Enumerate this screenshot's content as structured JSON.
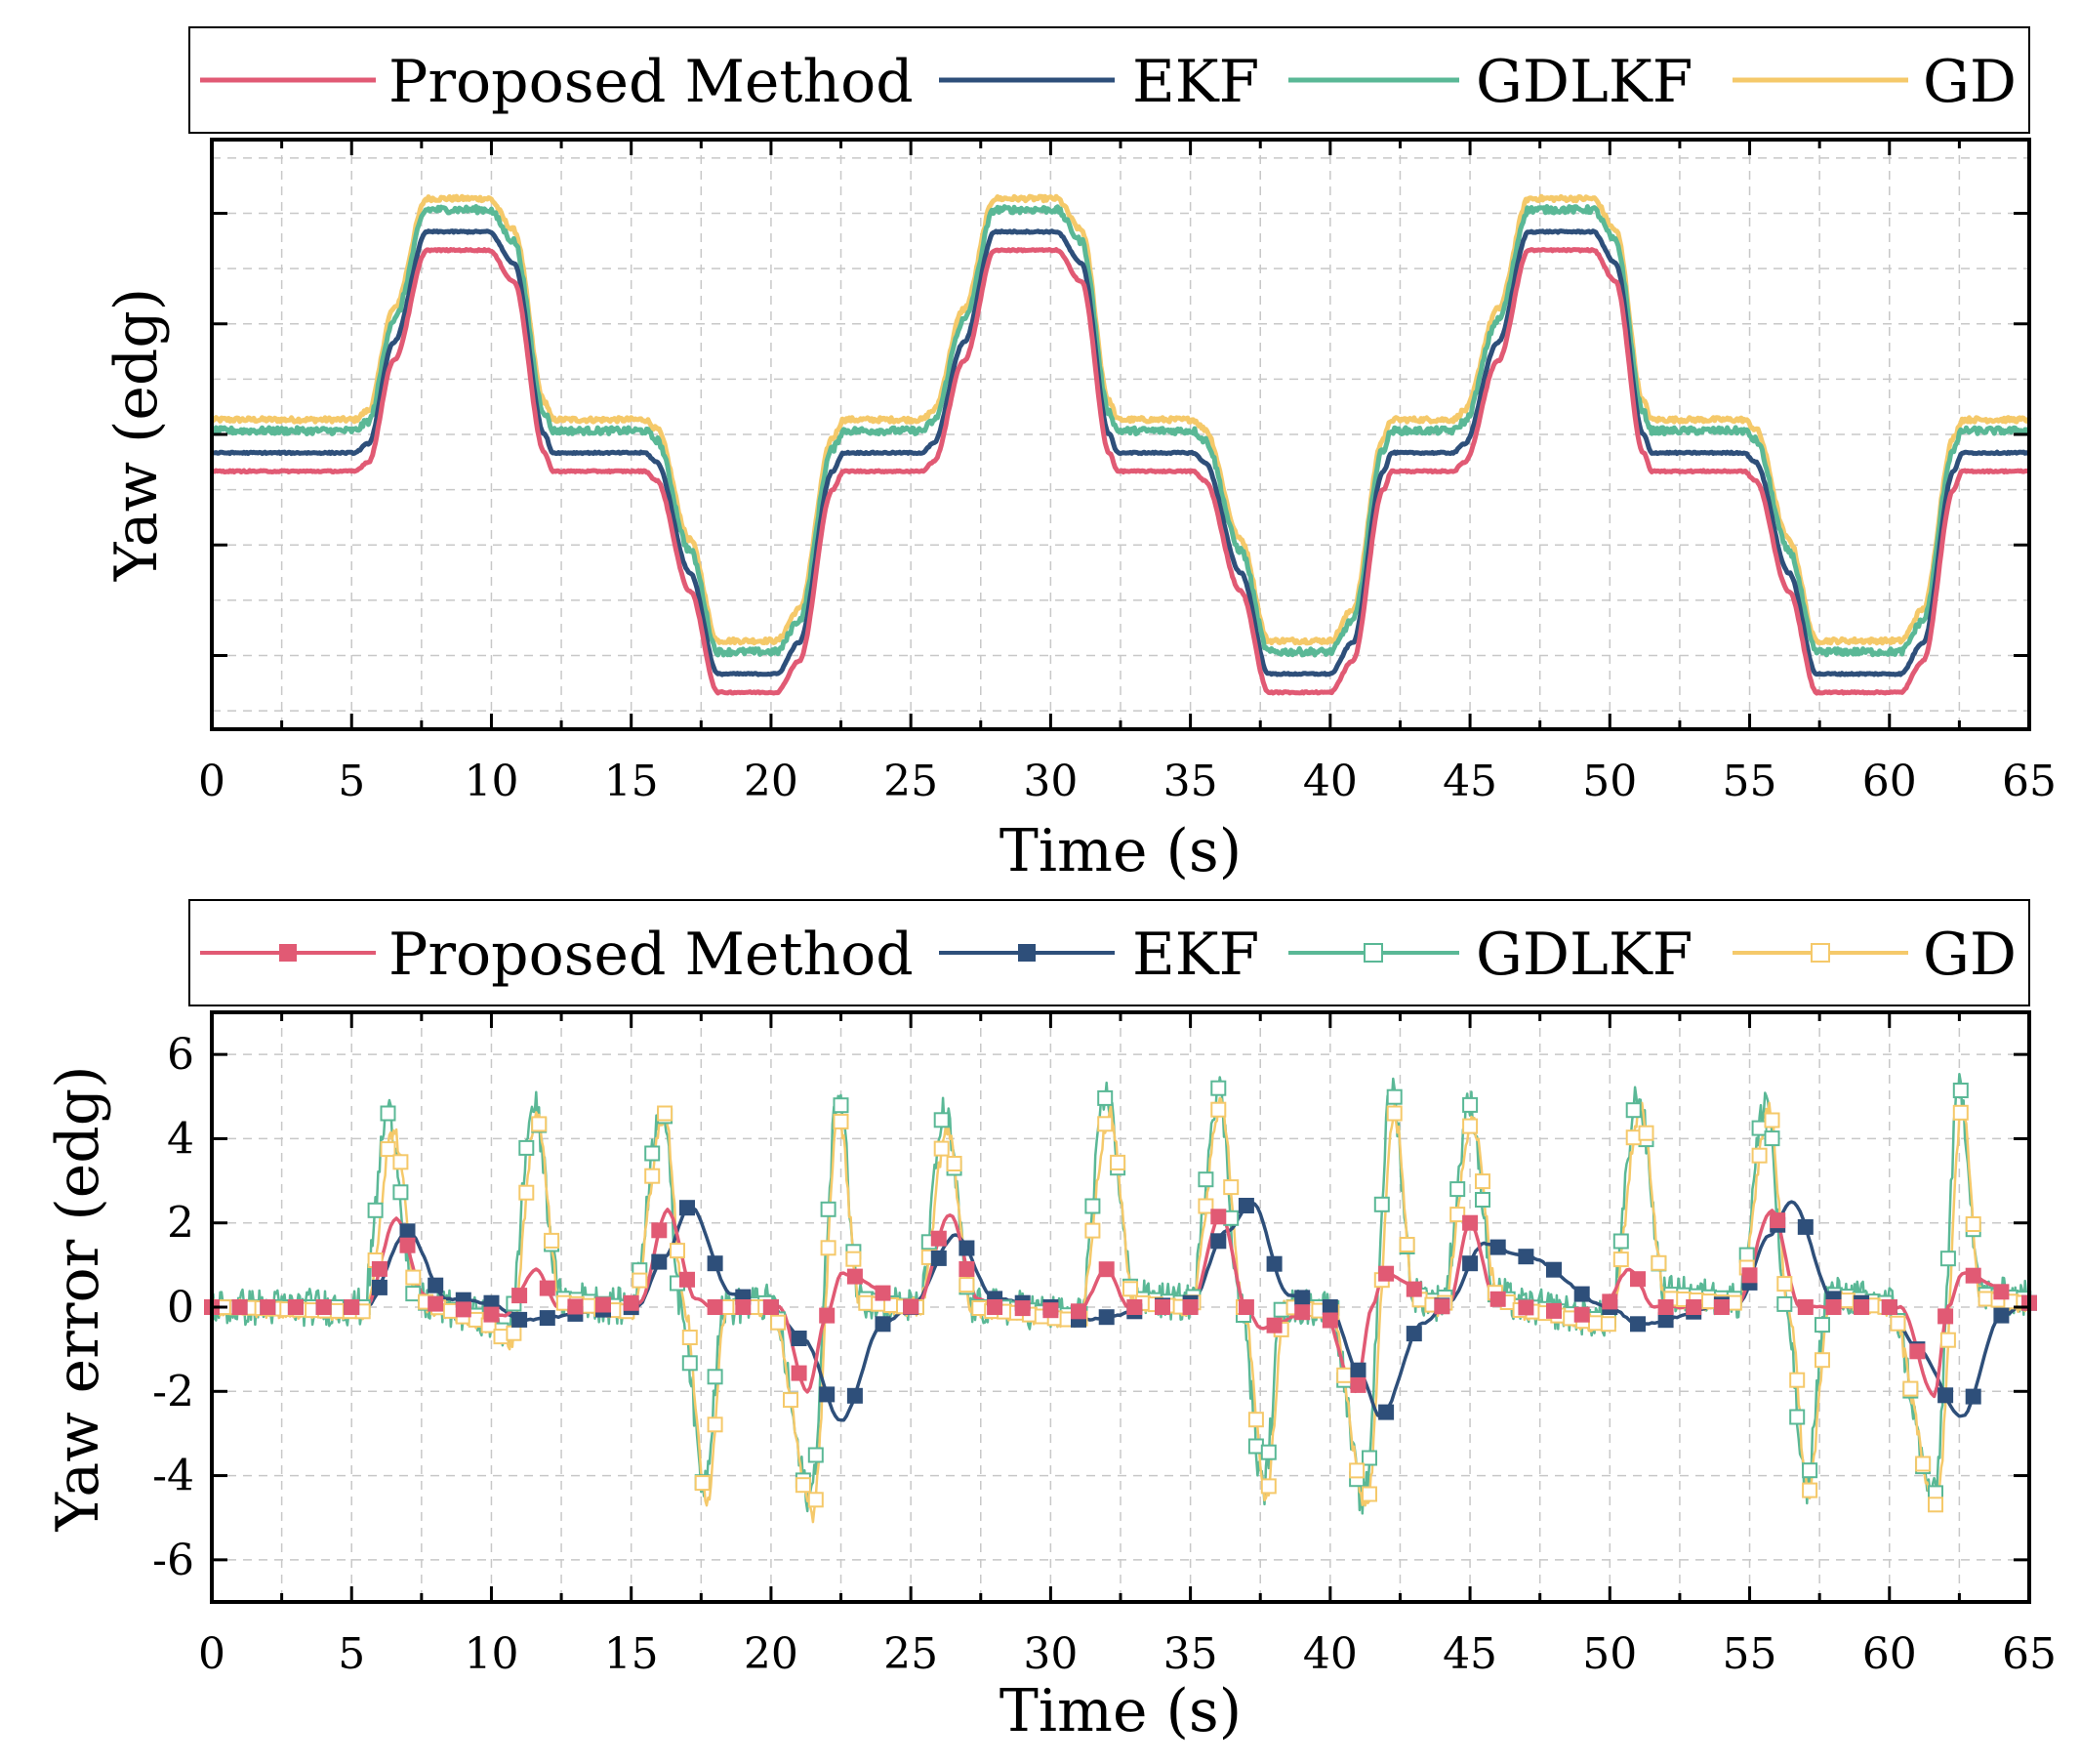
{
  "chart_data": [
    {
      "type": "line",
      "title": "",
      "xlabel": "Time (s)",
      "ylabel": "Yaw (edg)",
      "xlim": [
        0,
        65
      ],
      "x_ticks": [
        "0",
        "5",
        "10",
        "15",
        "20",
        "25",
        "30",
        "35",
        "40",
        "45",
        "50",
        "55",
        "60",
        "65"
      ],
      "y_tick_labels_visible": false,
      "grid": true,
      "legend_position": "top",
      "series": [
        {
          "name": "Proposed Method",
          "color": "#e15a74",
          "offset": -2.0
        },
        {
          "name": "EKF",
          "color": "#2e4f7a",
          "offset": -1.0
        },
        {
          "name": "GDLKF",
          "color": "#5ab896",
          "offset": 0.2
        },
        {
          "name": "GD",
          "color": "#f5c96a",
          "offset": 0.8
        }
      ],
      "profile": {
        "x": [
          0,
          5.1,
          5.6,
          6.5,
          7.7,
          9.9,
          10.8,
          11.9,
          12.2,
          15.5,
          15.9,
          17.1,
          18.1,
          20.2,
          21.0,
          22.2,
          22.6,
          25.4,
          25.8,
          26.9,
          28.0,
          30.2,
          31.1,
          32.1,
          32.4,
          35.1,
          35.5,
          36.8,
          37.8,
          40.0,
          40.8,
          41.9,
          42.2,
          44.4,
          44.8,
          46.0,
          47.1,
          49.4,
          50.2,
          51.2,
          51.5,
          54.8,
          55.2,
          56.4,
          57.4,
          60.4,
          61.2,
          62.3,
          62.6,
          65
        ],
        "y": [
          0,
          0,
          0.5,
          6.0,
          12.0,
          12.0,
          10.3,
          1.0,
          0,
          0,
          -0.5,
          -6.5,
          -12.0,
          -12.0,
          -10.3,
          -1.0,
          0,
          0,
          0.5,
          6.0,
          12.0,
          12.0,
          10.3,
          1.0,
          0,
          0,
          -0.5,
          -6.5,
          -12.0,
          -12.0,
          -10.3,
          -1.0,
          0,
          0,
          0.5,
          6.0,
          12.0,
          12.0,
          10.3,
          1.0,
          0,
          0,
          -0.5,
          -6.5,
          -12.0,
          -12.0,
          -10.3,
          -1.0,
          0,
          0
        ]
      }
    },
    {
      "type": "line",
      "title": "",
      "xlabel": "Time (s)",
      "ylabel": "Yaw error (edg)",
      "xlim": [
        0,
        65
      ],
      "ylim": [
        -7,
        7
      ],
      "x_ticks": [
        "0",
        "5",
        "10",
        "15",
        "20",
        "25",
        "30",
        "35",
        "40",
        "45",
        "50",
        "55",
        "60",
        "65"
      ],
      "y_ticks": [
        "-6",
        "-4",
        "-2",
        "0",
        "2",
        "4",
        "6"
      ],
      "grid": true,
      "legend_position": "top",
      "series": [
        {
          "name": "Proposed Method",
          "color": "#e15a74",
          "marker": "filled-square",
          "x": [
            0,
            5.5,
            6.6,
            7.6,
            8.2,
            10.5,
            11.6,
            12.4,
            15.3,
            16.3,
            17.3,
            17.9,
            20.3,
            21.3,
            22.0,
            22.5,
            25.2,
            26.4,
            27.4,
            28.0,
            31.0,
            32.0,
            32.8,
            35.0,
            36.1,
            37.0,
            37.5,
            39.7,
            40.9,
            41.5,
            41.9,
            44.2,
            45.0,
            45.9,
            46.6,
            49.6,
            50.7,
            51.6,
            54.5,
            55.8,
            56.8,
            57.3,
            60.4,
            61.6,
            62.1,
            62.6,
            65
          ],
          "y": [
            0.0,
            0.0,
            2.1,
            0.3,
            0.0,
            -0.2,
            0.9,
            0.0,
            0.1,
            2.3,
            0.2,
            0.0,
            0.0,
            -2.0,
            -0.2,
            0.8,
            0.0,
            2.2,
            0.2,
            0.0,
            -0.1,
            0.9,
            0.0,
            0.0,
            2.2,
            0.0,
            -0.5,
            0.0,
            -2.0,
            0.0,
            0.8,
            0.0,
            2.0,
            0.2,
            0.0,
            -0.2,
            0.9,
            0.0,
            0.0,
            2.3,
            0.0,
            0.0,
            0.0,
            -2.1,
            0.0,
            0.8,
            0.1
          ]
        },
        {
          "name": "EKF",
          "color": "#2e4f7a",
          "marker": "filled-square",
          "x": [
            0,
            5.5,
            7.0,
            8.4,
            10.0,
            11.0,
            15.2,
            16.2,
            17.1,
            18.6,
            20.0,
            21.2,
            22.5,
            24.0,
            25.0,
            26.6,
            28.0,
            30.0,
            31.0,
            35.0,
            36.3,
            37.2,
            38.5,
            40.0,
            41.0,
            41.8,
            43.3,
            44.2,
            45.5,
            47.0,
            50.0,
            51.0,
            54.6,
            55.7,
            56.5,
            58.0,
            60.0,
            61.0,
            62.6,
            64.0,
            65
          ],
          "y": [
            0.0,
            0.0,
            1.8,
            0.2,
            0.1,
            -0.3,
            0.0,
            1.2,
            2.4,
            0.3,
            0.0,
            -0.8,
            -2.7,
            -0.4,
            0.0,
            1.7,
            0.2,
            0.0,
            -0.3,
            0.1,
            1.8,
            2.5,
            0.3,
            0.0,
            -1.5,
            -2.6,
            -0.4,
            0.1,
            1.5,
            1.2,
            0.0,
            -0.4,
            0.1,
            1.7,
            2.5,
            0.2,
            0.0,
            -1.0,
            -2.6,
            -0.2,
            0.1
          ]
        },
        {
          "name": "GDLKF",
          "color": "#5ab896",
          "marker": "hollow-square",
          "x": [
            0,
            5.4,
            6.3,
            7.3,
            8.0,
            9.5,
            10.6,
            11.5,
            12.5,
            15.0,
            16.1,
            16.8,
            17.6,
            18.3,
            20.0,
            21.4,
            22.4,
            23.2,
            25.3,
            26.2,
            27.2,
            28.0,
            31.0,
            32.0,
            33.0,
            35.0,
            36.0,
            36.8,
            37.6,
            38.3,
            40.0,
            41.2,
            42.2,
            43.0,
            44.0,
            45.0,
            45.9,
            47.0,
            50.0,
            51.0,
            52.0,
            54.6,
            55.6,
            56.3,
            57.0,
            57.8,
            60.0,
            61.6,
            62.5,
            63.3,
            65
          ],
          "y": [
            0.0,
            0.0,
            4.6,
            0.2,
            0.0,
            -0.2,
            -0.6,
            4.8,
            0.2,
            0.0,
            4.8,
            0.0,
            -4.2,
            0.0,
            0.1,
            -4.5,
            5.0,
            0.2,
            0.0,
            4.6,
            0.0,
            0.0,
            -0.2,
            5.0,
            0.2,
            0.1,
            5.2,
            0.0,
            -4.3,
            0.0,
            0.0,
            -4.6,
            5.2,
            0.3,
            0.1,
            4.8,
            0.3,
            0.0,
            -0.3,
            5.0,
            0.3,
            0.2,
            5.0,
            0.0,
            -4.3,
            0.3,
            0.1,
            -4.5,
            5.2,
            0.3,
            0.2
          ]
        },
        {
          "name": "GD",
          "color": "#f5c96a",
          "marker": "hollow-square",
          "x": [
            0,
            5.5,
            6.5,
            7.4,
            8.0,
            9.5,
            10.7,
            11.6,
            12.5,
            15.0,
            16.2,
            16.9,
            17.7,
            18.4,
            20.0,
            21.5,
            22.4,
            23.2,
            25.3,
            26.3,
            27.2,
            28.0,
            31.0,
            32.1,
            33.0,
            35.0,
            36.1,
            36.9,
            37.7,
            38.4,
            40.0,
            41.3,
            42.3,
            43.0,
            44.0,
            45.1,
            46.0,
            47.0,
            50.0,
            51.1,
            52.0,
            54.6,
            55.7,
            56.4,
            57.1,
            57.9,
            60.0,
            61.7,
            62.6,
            63.3,
            65
          ],
          "y": [
            0.0,
            -0.1,
            4.2,
            0.2,
            0.0,
            -0.3,
            -0.8,
            4.5,
            0.1,
            -0.1,
            4.6,
            0.0,
            -4.6,
            0.0,
            0.0,
            -4.9,
            4.6,
            0.1,
            0.0,
            4.2,
            0.0,
            -0.1,
            -0.3,
            4.6,
            0.1,
            0.0,
            4.8,
            0.0,
            -4.5,
            0.0,
            -0.1,
            -4.7,
            4.6,
            0.2,
            0.0,
            4.4,
            0.2,
            -0.1,
            -0.4,
            4.7,
            0.2,
            0.1,
            4.7,
            0.0,
            -4.4,
            0.2,
            0.0,
            -4.7,
            4.7,
            0.2,
            0.1
          ]
        }
      ]
    }
  ]
}
